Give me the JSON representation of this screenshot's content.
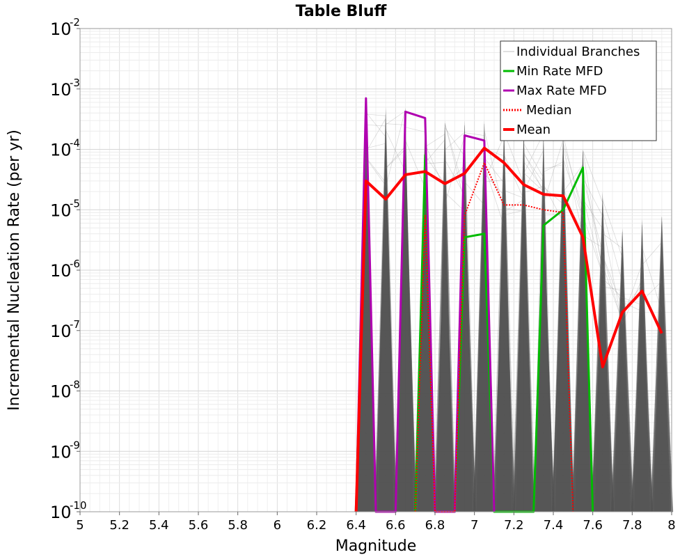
{
  "chart_data": {
    "type": "line",
    "title": "Table Bluff",
    "xlabel": "Magnitude",
    "ylabel": "Incremental Nucleation Rate (per yr)",
    "xlim": [
      5,
      8
    ],
    "ylim": [
      1e-10,
      0.01
    ],
    "yscale": "log",
    "grid": true,
    "legend_position": "top-right",
    "x_ticks": [
      "5",
      "5.2",
      "5.4",
      "5.6",
      "5.8",
      "6",
      "6.2",
      "6.4",
      "6.6",
      "6.8",
      "7",
      "7.2",
      "7.4",
      "7.6",
      "7.8",
      "8"
    ],
    "y_ticks": [
      {
        "base": "10",
        "exp": "-10"
      },
      {
        "base": "10",
        "exp": "-9"
      },
      {
        "base": "10",
        "exp": "-8"
      },
      {
        "base": "10",
        "exp": "-7"
      },
      {
        "base": "10",
        "exp": "-6"
      },
      {
        "base": "10",
        "exp": "-5"
      },
      {
        "base": "10",
        "exp": "-4"
      },
      {
        "base": "10",
        "exp": "-3"
      },
      {
        "base": "10",
        "exp": "-2"
      }
    ],
    "series": [
      {
        "name": "Individual Branches",
        "color": "#999999",
        "style": "thin",
        "x": [
          6.45,
          6.55,
          6.65,
          6.75,
          6.85,
          6.95,
          7.05,
          7.15,
          7.25,
          7.35,
          7.45,
          7.55,
          7.65,
          7.75,
          7.85,
          7.95
        ],
        "y": [
          0.0006,
          0.0005,
          0.0005,
          0.0003,
          0.0003,
          0.0003,
          0.0003,
          0.0002,
          0.0002,
          0.0002,
          0.0002,
          0.0001,
          2e-05,
          5e-06,
          7e-06,
          8e-06
        ]
      },
      {
        "name": "Min Rate MFD",
        "color": "#00bb00",
        "style": "solid",
        "x": [
          6.7,
          6.75,
          6.8,
          6.9,
          6.95,
          7.05,
          7.1,
          7.3,
          7.35,
          7.45,
          7.55,
          7.6
        ],
        "y": [
          1e-10,
          8e-05,
          1e-10,
          1e-10,
          3.5e-06,
          4e-06,
          1e-10,
          1e-10,
          5.5e-06,
          1e-05,
          5e-05,
          1e-10
        ]
      },
      {
        "name": "Max Rate MFD",
        "color": "#b000b0",
        "style": "solid",
        "x": [
          6.4,
          6.45,
          6.5,
          6.6,
          6.65,
          6.75,
          6.8,
          6.9,
          6.95,
          7.05,
          7.1
        ],
        "y": [
          1e-10,
          0.0007,
          1e-10,
          1e-10,
          0.00042,
          0.00033,
          1e-10,
          1e-10,
          0.00017,
          0.00014,
          1e-10
        ]
      },
      {
        "name": "Median",
        "color": "#ff0000",
        "style": "dotted",
        "x": [
          6.7,
          6.75,
          6.8,
          6.9,
          6.95,
          7.05,
          7.15,
          7.25,
          7.35,
          7.45,
          7.5
        ],
        "y": [
          1e-10,
          8e-06,
          1e-10,
          1e-10,
          8e-06,
          6e-05,
          1.2e-05,
          1.2e-05,
          1e-05,
          9e-06,
          1e-10
        ]
      },
      {
        "name": "Mean",
        "color": "#ff0000",
        "style": "thick",
        "x": [
          6.4,
          6.45,
          6.55,
          6.65,
          6.75,
          6.85,
          6.95,
          7.05,
          7.15,
          7.25,
          7.35,
          7.45,
          7.55,
          7.65,
          7.75,
          7.85,
          7.95
        ],
        "y": [
          1e-10,
          3e-05,
          1.5e-05,
          3.8e-05,
          4.3e-05,
          2.7e-05,
          4e-05,
          0.000105,
          6e-05,
          2.6e-05,
          1.8e-05,
          1.7e-05,
          3.5e-06,
          2.5e-08,
          2e-07,
          4.5e-07,
          9e-08
        ]
      }
    ]
  }
}
